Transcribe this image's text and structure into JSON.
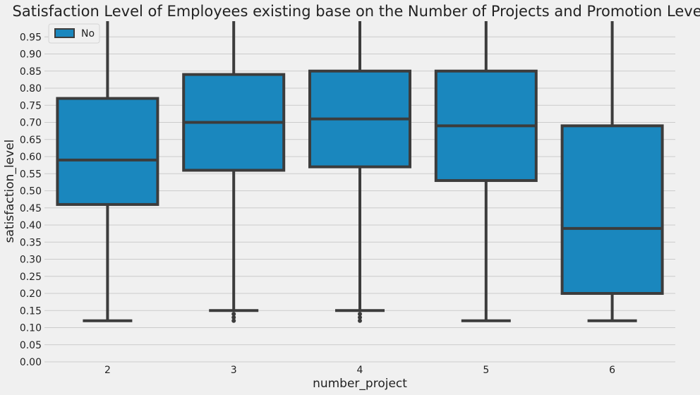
{
  "chart_data": {
    "type": "box",
    "title": "Satisfaction Level of Employees existing base on the Number of Projects and Promotion Level",
    "xlabel": "number_project",
    "ylabel": "satisfaction_level",
    "categories": [
      "2",
      "3",
      "4",
      "5",
      "6"
    ],
    "ylim": [
      0,
      1.0
    ],
    "yticks": [
      "0.00",
      "0.05",
      "0.10",
      "0.15",
      "0.20",
      "0.25",
      "0.30",
      "0.35",
      "0.40",
      "0.45",
      "0.50",
      "0.55",
      "0.60",
      "0.65",
      "0.70",
      "0.75",
      "0.80",
      "0.85",
      "0.90",
      "0.95"
    ],
    "grid": "horizontal",
    "legend": {
      "position": "top-left",
      "entries": [
        "No"
      ]
    },
    "series": [
      {
        "name": "No",
        "color": "#1a87be",
        "boxes": [
          {
            "category": "2",
            "whisker_low": 0.12,
            "q1": 0.46,
            "median": 0.59,
            "q3": 0.77,
            "whisker_high": 1.0,
            "outliers": []
          },
          {
            "category": "3",
            "whisker_low": 0.15,
            "q1": 0.56,
            "median": 0.7,
            "q3": 0.84,
            "whisker_high": 1.0,
            "outliers": [
              0.14,
              0.13,
              0.12
            ]
          },
          {
            "category": "4",
            "whisker_low": 0.15,
            "q1": 0.57,
            "median": 0.71,
            "q3": 0.85,
            "whisker_high": 1.0,
            "outliers": [
              0.14,
              0.13,
              0.12
            ]
          },
          {
            "category": "5",
            "whisker_low": 0.12,
            "q1": 0.53,
            "median": 0.69,
            "q3": 0.85,
            "whisker_high": 1.0,
            "outliers": []
          },
          {
            "category": "6",
            "whisker_low": 0.12,
            "q1": 0.2,
            "median": 0.39,
            "q3": 0.69,
            "whisker_high": 1.0,
            "outliers": []
          }
        ]
      }
    ],
    "colors": {
      "background": "#f0f0f0",
      "grid": "#cbcbcb",
      "line": "#3c3c3c",
      "box": "#1a87be"
    }
  }
}
